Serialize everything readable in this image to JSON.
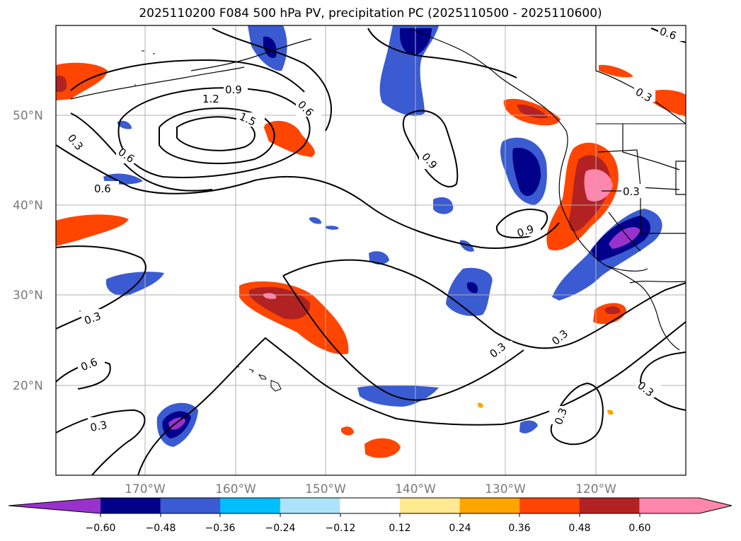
{
  "title": "2025110200 F084 500 hPa PV, precipitation PC (2025110500 - 2025110600)",
  "map": {
    "lat_labels": [
      "50°N",
      "40°N",
      "30°N",
      "20°N"
    ],
    "lon_labels": [
      "170°W",
      "160°W",
      "150°W",
      "140°W",
      "130°W",
      "120°W"
    ],
    "contour_labels": [
      "0.9",
      "1.2",
      "1.5",
      "0.6",
      "0.3",
      "0.6",
      "0.6",
      "0.9",
      "0.9",
      "0.3",
      "0.3",
      "0.6",
      "0.3",
      "0.3",
      "0.3",
      "0.3",
      "0.3",
      "0.3",
      "0.6"
    ]
  },
  "colorbar": {
    "tick_labels": [
      "−0.60",
      "−0.48",
      "−0.36",
      "−0.24",
      "−0.12",
      "0.12",
      "0.24",
      "0.36",
      "0.48",
      "0.60"
    ],
    "colors": [
      "#9932cc",
      "#00008b",
      "#3a5bd1",
      "#00bfff",
      "#ade3fa",
      "#ffffff",
      "#ffe991",
      "#ffa500",
      "#ff4500",
      "#b22222",
      "#ff86ad",
      "#ff86ad"
    ]
  }
}
